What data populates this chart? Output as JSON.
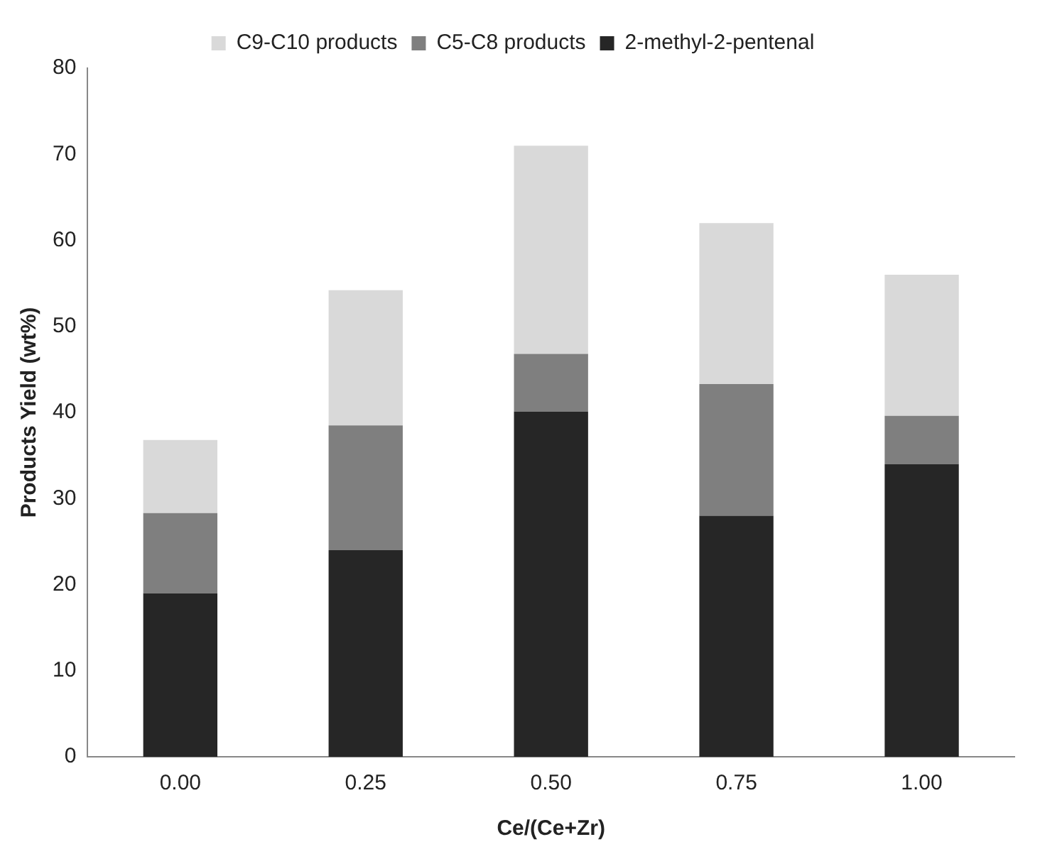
{
  "chart_data": {
    "type": "bar",
    "stacked": true,
    "xlabel": "Ce/(Ce+Zr)",
    "ylabel": "Products Yield (wt%)",
    "categories": [
      "0.00",
      "0.25",
      "0.50",
      "0.75",
      "1.00"
    ],
    "series": [
      {
        "name": "2-methyl-2-pentenal",
        "color": "#262626",
        "values": [
          19,
          24,
          40.1,
          28,
          34
        ]
      },
      {
        "name": "C5-C8 products",
        "color": "#7f7f7f",
        "values": [
          9.3,
          14.5,
          6.7,
          15.3,
          5.6
        ]
      },
      {
        "name": "C9-C10 products",
        "color": "#d9d9d9",
        "values": [
          8.5,
          15.7,
          24.2,
          18.7,
          16.4
        ]
      }
    ],
    "ylim": [
      0,
      80
    ],
    "yticks": [
      0,
      10,
      20,
      30,
      40,
      50,
      60,
      70,
      80
    ],
    "grid": false,
    "legend": "top"
  }
}
